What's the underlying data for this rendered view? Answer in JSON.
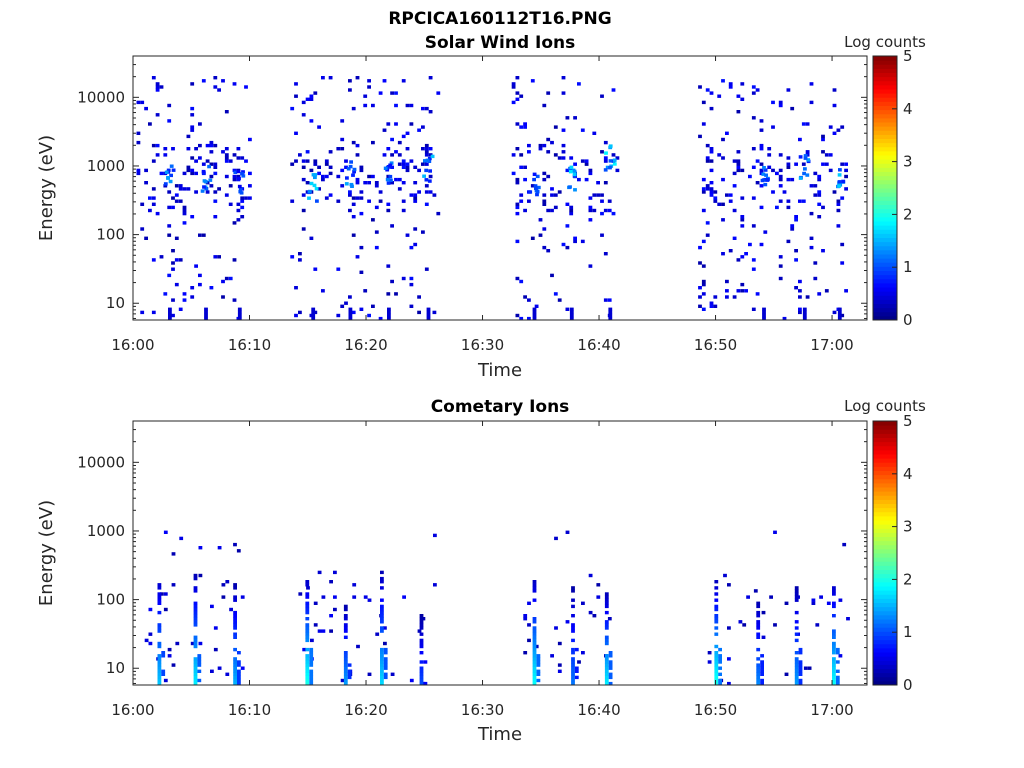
{
  "figure_title": "RPCICA160112T16.PNG",
  "colors": {
    "jet": [
      "#00007f",
      "#0000ff",
      "#007fff",
      "#00ffff",
      "#7fff7f",
      "#ffff00",
      "#ff7f00",
      "#ff0000",
      "#7f0000"
    ]
  },
  "chart_data": [
    {
      "type": "heatmap",
      "title": "Solar Wind Ions",
      "xlabel": "Time",
      "ylabel": "Energy (eV)",
      "y_scale": "log",
      "x_ticks": [
        "16:00",
        "16:10",
        "16:20",
        "16:30",
        "16:40",
        "16:50",
        "17:00"
      ],
      "x_range_minutes": [
        0,
        63
      ],
      "y_ticks": [
        "10",
        "100",
        "1000",
        "10000"
      ],
      "y_range_eV": [
        5.7,
        40000
      ],
      "colorbar": {
        "label": "Log counts",
        "ticks": [
          "0",
          "1",
          "2",
          "3",
          "4",
          "5"
        ],
        "range": [
          0,
          5
        ]
      },
      "activity_windows_minutes": [
        [
          0.3,
          10.2
        ],
        [
          13.5,
          26.2
        ],
        [
          32.5,
          41.5
        ],
        [
          48.5,
          61.3
        ]
      ],
      "hotspots": [
        {
          "t": 3.0,
          "e": 700,
          "v": 1.5
        },
        {
          "t": 6.1,
          "e": 650,
          "v": 1.3
        },
        {
          "t": 9.0,
          "e": 600,
          "v": 1.0
        },
        {
          "t": 15.3,
          "e": 450,
          "v": 1.6
        },
        {
          "t": 18.5,
          "e": 700,
          "v": 1.4
        },
        {
          "t": 21.8,
          "e": 800,
          "v": 1.3
        },
        {
          "t": 25.2,
          "e": 900,
          "v": 1.5
        },
        {
          "t": 34.3,
          "e": 550,
          "v": 1.2
        },
        {
          "t": 37.5,
          "e": 600,
          "v": 1.6
        },
        {
          "t": 40.8,
          "e": 1200,
          "v": 1.7
        },
        {
          "t": 54.0,
          "e": 700,
          "v": 1.2
        },
        {
          "t": 57.5,
          "e": 900,
          "v": 1.4
        },
        {
          "t": 60.5,
          "e": 700,
          "v": 1.5
        }
      ]
    },
    {
      "type": "heatmap",
      "title": "Cometary Ions",
      "xlabel": "Time",
      "ylabel": "Energy (eV)",
      "y_scale": "log",
      "x_ticks": [
        "16:00",
        "16:10",
        "16:20",
        "16:30",
        "16:40",
        "16:50",
        "17:00"
      ],
      "x_range_minutes": [
        0,
        63
      ],
      "y_ticks": [
        "10",
        "100",
        "1000",
        "10000"
      ],
      "y_range_eV": [
        5.7,
        40000
      ],
      "colorbar": {
        "label": "Log counts",
        "ticks": [
          "0",
          "1",
          "2",
          "3",
          "4",
          "5"
        ],
        "range": [
          0,
          5
        ]
      },
      "activity_windows_minutes": [
        [
          1.0,
          9.5
        ],
        [
          14.2,
          25.8
        ],
        [
          33.5,
          41.0
        ],
        [
          49.0,
          61.3
        ]
      ],
      "columns": [
        {
          "t": 2.1,
          "emax": 250,
          "v": 1.6
        },
        {
          "t": 5.2,
          "emax": 220,
          "v": 1.8
        },
        {
          "t": 8.6,
          "emax": 160,
          "v": 1.5
        },
        {
          "t": 14.8,
          "emax": 200,
          "v": 2.0
        },
        {
          "t": 18.1,
          "emax": 80,
          "v": 1.4
        },
        {
          "t": 21.2,
          "emax": 250,
          "v": 1.7
        },
        {
          "t": 24.6,
          "emax": 60,
          "v": 1.0
        },
        {
          "t": 34.3,
          "emax": 200,
          "v": 1.9
        },
        {
          "t": 37.6,
          "emax": 150,
          "v": 1.2
        },
        {
          "t": 40.5,
          "emax": 120,
          "v": 1.8
        },
        {
          "t": 49.9,
          "emax": 180,
          "v": 2.0
        },
        {
          "t": 53.5,
          "emax": 100,
          "v": 1.3
        },
        {
          "t": 56.8,
          "emax": 150,
          "v": 1.4
        },
        {
          "t": 60.0,
          "emax": 180,
          "v": 1.9
        }
      ]
    }
  ]
}
